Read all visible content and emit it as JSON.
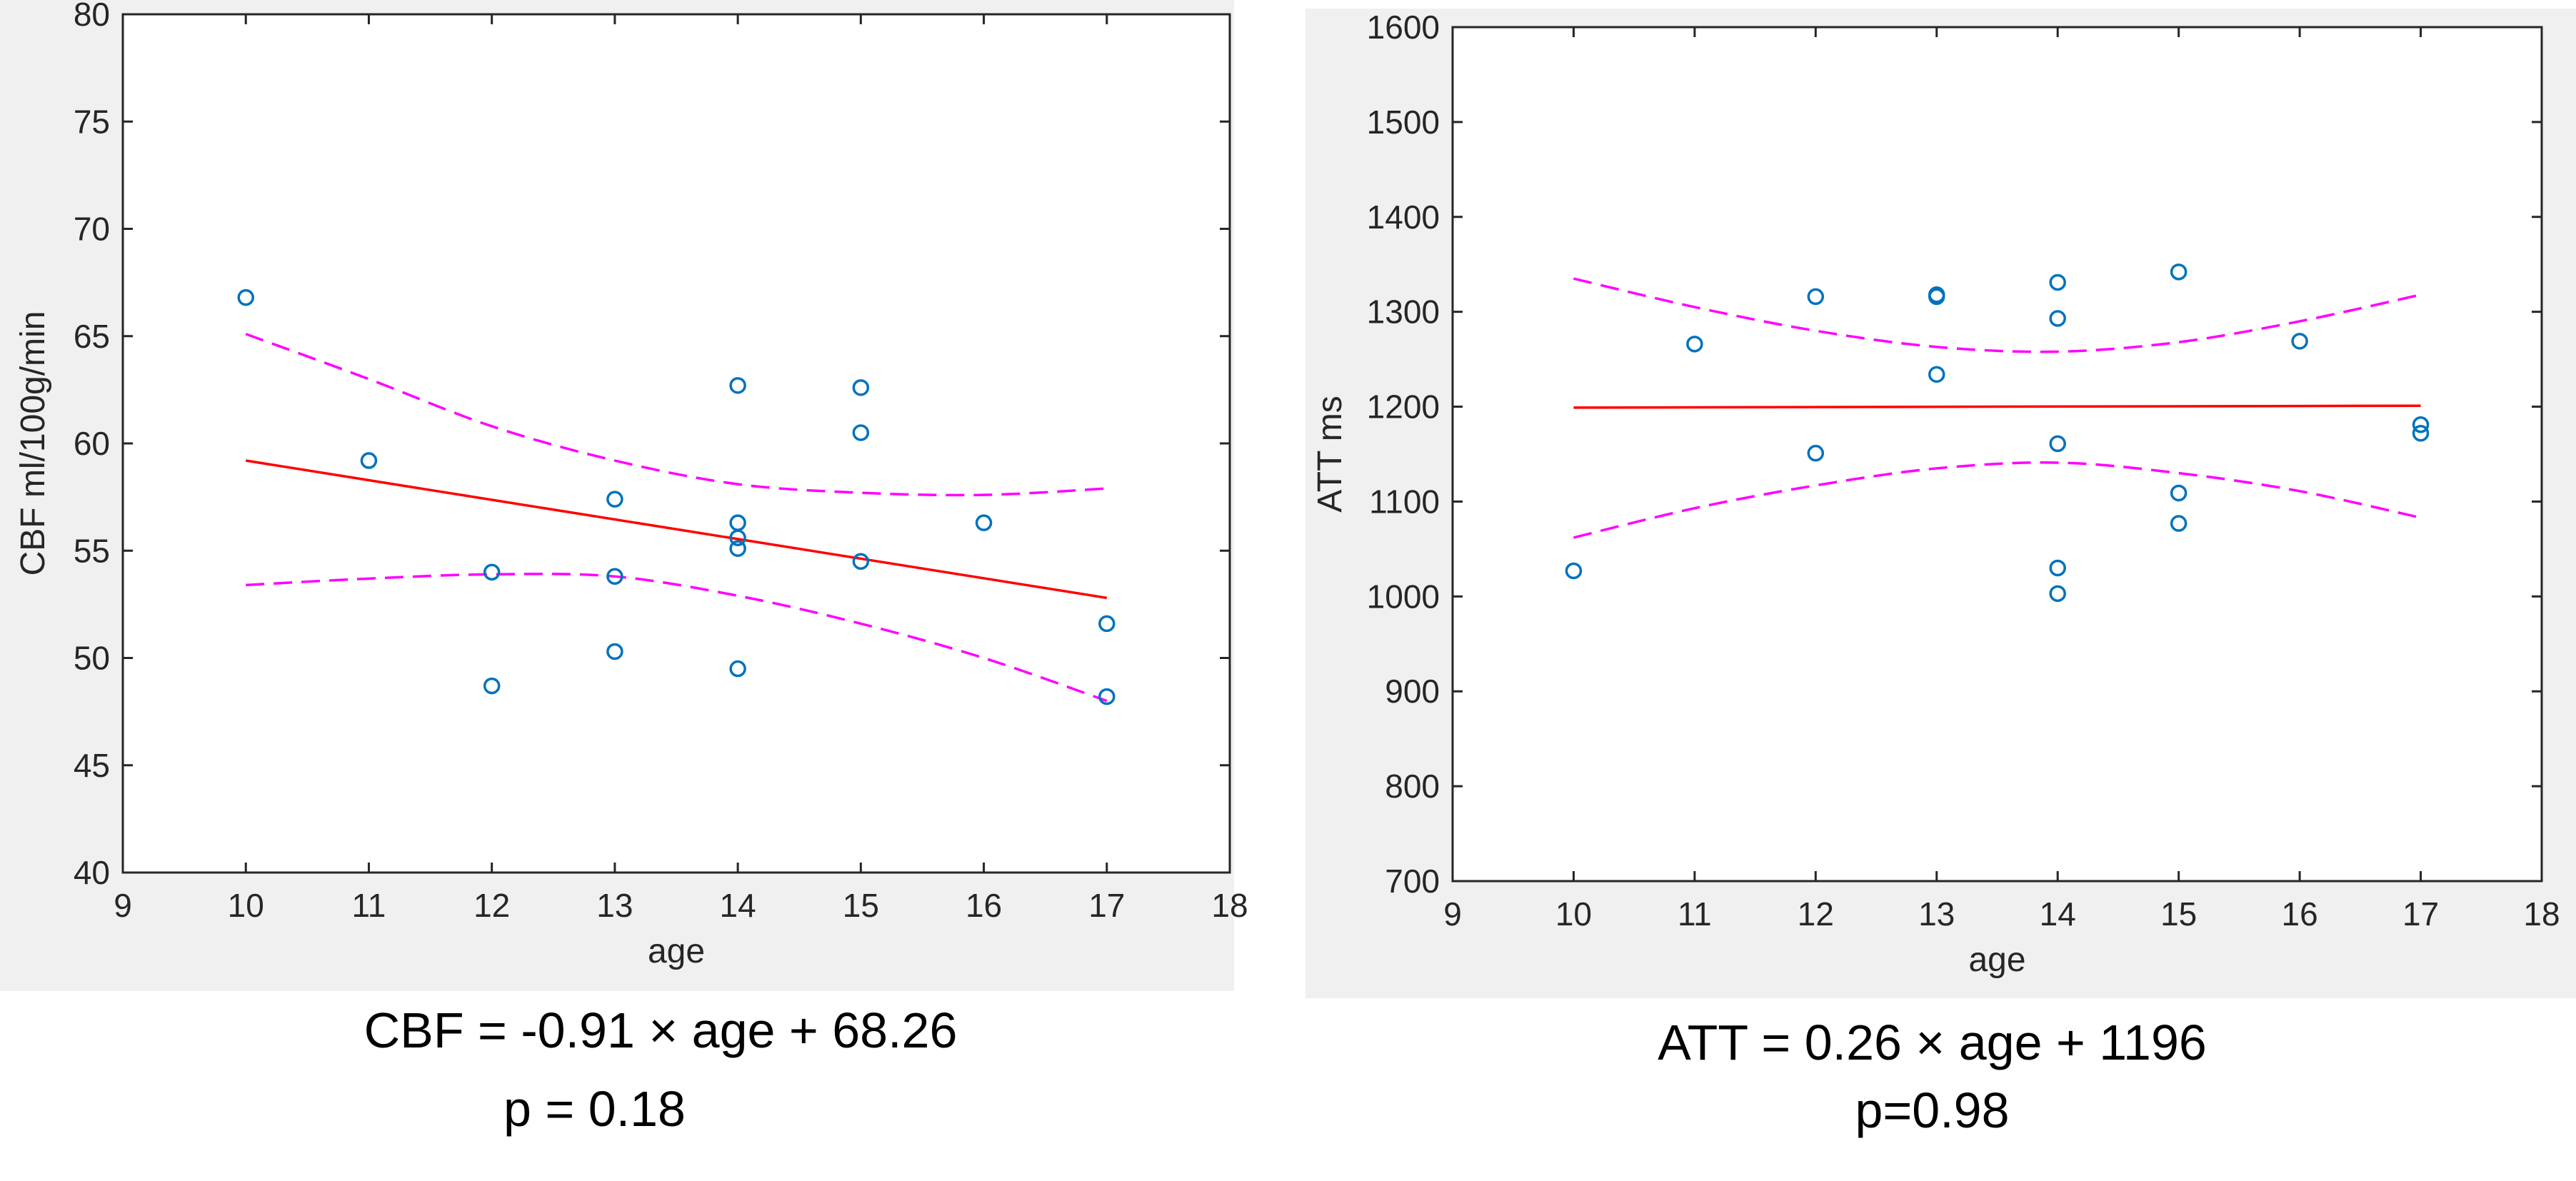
{
  "chart_data": [
    {
      "type": "scatter",
      "xlabel": "age",
      "ylabel": "CBF ml/100g/min",
      "xlim": [
        9,
        18
      ],
      "ylim": [
        40,
        80
      ],
      "xticks": [
        9,
        10,
        11,
        12,
        13,
        14,
        15,
        16,
        17,
        18
      ],
      "yticks": [
        40,
        45,
        50,
        55,
        60,
        65,
        70,
        75,
        80
      ],
      "grid": false,
      "colors": {
        "markers": "#0072BD",
        "fit": "#ff0000",
        "confidence": "#ff00ff"
      },
      "points": [
        {
          "x": 10,
          "y": 66.8
        },
        {
          "x": 11,
          "y": 59.2
        },
        {
          "x": 12,
          "y": 54.0
        },
        {
          "x": 12,
          "y": 48.7
        },
        {
          "x": 13,
          "y": 57.4
        },
        {
          "x": 13,
          "y": 53.8
        },
        {
          "x": 13,
          "y": 50.3
        },
        {
          "x": 14,
          "y": 62.7
        },
        {
          "x": 14,
          "y": 56.3
        },
        {
          "x": 14,
          "y": 55.6
        },
        {
          "x": 14,
          "y": 55.1
        },
        {
          "x": 14,
          "y": 49.5
        },
        {
          "x": 15,
          "y": 62.6
        },
        {
          "x": 15,
          "y": 60.5
        },
        {
          "x": 15,
          "y": 54.5
        },
        {
          "x": 16,
          "y": 56.3
        },
        {
          "x": 17,
          "y": 51.6
        },
        {
          "x": 17,
          "y": 48.2
        }
      ],
      "fit": {
        "x": [
          10,
          17
        ],
        "y": [
          59.2,
          52.8
        ]
      },
      "ci_upper": {
        "x": [
          10,
          11,
          12,
          13,
          14,
          15,
          16,
          17
        ],
        "y": [
          65.1,
          63.0,
          60.8,
          59.2,
          58.1,
          57.7,
          57.6,
          57.9
        ]
      },
      "ci_lower": {
        "x": [
          10,
          11,
          12,
          13,
          14,
          15,
          16,
          17
        ],
        "y": [
          53.4,
          53.7,
          53.9,
          53.8,
          52.9,
          51.6,
          50.0,
          48.0
        ]
      },
      "caption_line1": "CBF = -0.91 × age + 68.26",
      "caption_line2": "p = 0.18"
    },
    {
      "type": "scatter",
      "xlabel": "age",
      "ylabel": "ATT ms",
      "xlim": [
        9,
        18
      ],
      "ylim": [
        700,
        1600
      ],
      "xticks": [
        9,
        10,
        11,
        12,
        13,
        14,
        15,
        16,
        17,
        18
      ],
      "yticks": [
        700,
        800,
        900,
        1000,
        1100,
        1200,
        1300,
        1400,
        1500,
        1600
      ],
      "grid": false,
      "colors": {
        "markers": "#0072BD",
        "fit": "#ff0000",
        "confidence": "#ff00ff"
      },
      "points": [
        {
          "x": 10,
          "y": 1027
        },
        {
          "x": 11,
          "y": 1266
        },
        {
          "x": 12,
          "y": 1316
        },
        {
          "x": 12,
          "y": 1151
        },
        {
          "x": 13,
          "y": 1318
        },
        {
          "x": 13,
          "y": 1316
        },
        {
          "x": 13,
          "y": 1234
        },
        {
          "x": 14,
          "y": 1331
        },
        {
          "x": 14,
          "y": 1293
        },
        {
          "x": 14,
          "y": 1161
        },
        {
          "x": 14,
          "y": 1030
        },
        {
          "x": 14,
          "y": 1003
        },
        {
          "x": 15,
          "y": 1342
        },
        {
          "x": 15,
          "y": 1109
        },
        {
          "x": 15,
          "y": 1077
        },
        {
          "x": 16,
          "y": 1269
        },
        {
          "x": 17,
          "y": 1181
        },
        {
          "x": 17,
          "y": 1172
        }
      ],
      "fit": {
        "x": [
          10,
          17
        ],
        "y": [
          1199,
          1201
        ]
      },
      "ci_upper": {
        "x": [
          10,
          11,
          12,
          13,
          14,
          15,
          16,
          17
        ],
        "y": [
          1335,
          1305,
          1280,
          1263,
          1258,
          1268,
          1290,
          1318
        ]
      },
      "ci_lower": {
        "x": [
          10,
          11,
          12,
          13,
          14,
          15,
          16,
          17
        ],
        "y": [
          1062,
          1093,
          1117,
          1135,
          1141,
          1130,
          1111,
          1083
        ]
      },
      "caption_line1": "ATT = 0.26 × age + 1196",
      "caption_line2": "p=0.98"
    }
  ]
}
